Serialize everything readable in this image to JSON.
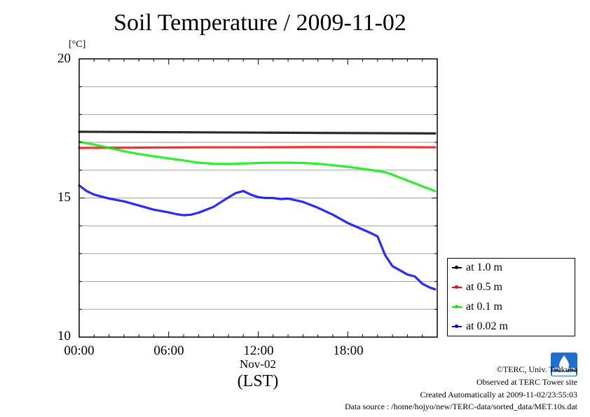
{
  "colors": {
    "at_1m": "#000000",
    "at_05m": "#ff0000",
    "at_01m": "#00ee00",
    "at_002m": "#0000ff",
    "grid": "#a0a0a0",
    "logo": "#1e6fd0"
  },
  "icons": {
    "logo": "terc-logo-icon"
  },
  "chart_data": {
    "type": "line",
    "title": "Soil Temperature / 2009-11-02",
    "ylabel": "[°C]",
    "xlabel": "(LST)",
    "x_date_label": "Nov-02",
    "ylim": [
      10,
      20
    ],
    "xlim": [
      "00:00",
      "24:00"
    ],
    "y_tick_labels": [
      "10",
      "15",
      "20"
    ],
    "y_ticks": [
      10,
      15,
      20
    ],
    "y_grid": [
      11,
      12,
      13,
      14,
      15,
      16,
      17,
      18,
      19
    ],
    "x_tick_labels": [
      "00:00",
      "06:00",
      "12:00",
      "18:00"
    ],
    "x_ticks_hours": [
      0,
      6,
      12,
      18
    ],
    "grid": true,
    "legend_position": "right",
    "series": [
      {
        "name": "at 1.0 m",
        "color_key": "at_1m",
        "x": [
          0,
          4,
          8,
          12,
          16,
          20,
          23.85
        ],
        "y": [
          17.38,
          17.37,
          17.36,
          17.35,
          17.34,
          17.33,
          17.32
        ]
      },
      {
        "name": "at 0.5 m",
        "color_key": "at_05m",
        "x": [
          0,
          4,
          8,
          12,
          16,
          20,
          23.85
        ],
        "y": [
          16.8,
          16.81,
          16.82,
          16.82,
          16.83,
          16.83,
          16.82
        ]
      },
      {
        "name": "at 0.1 m",
        "color_key": "at_01m",
        "x": [
          0,
          1,
          2,
          3,
          4,
          5,
          6,
          7,
          8,
          9,
          10,
          11,
          12,
          13,
          14,
          15,
          16,
          17,
          18,
          19,
          20,
          20.5,
          21,
          22,
          23,
          23.85
        ],
        "y": [
          17.02,
          16.92,
          16.8,
          16.68,
          16.58,
          16.5,
          16.42,
          16.35,
          16.27,
          16.23,
          16.22,
          16.24,
          16.26,
          16.27,
          16.27,
          16.26,
          16.23,
          16.18,
          16.12,
          16.05,
          15.97,
          15.93,
          15.84,
          15.63,
          15.42,
          15.25
        ]
      },
      {
        "name": "at 0.02 m",
        "color_key": "at_002m",
        "x": [
          0,
          0.5,
          1,
          2,
          3,
          4,
          5,
          6,
          6.5,
          7,
          7.5,
          8,
          9,
          10,
          10.5,
          11,
          11.5,
          12,
          12.5,
          13,
          13.5,
          14,
          15,
          16,
          17,
          18,
          19,
          19.5,
          20,
          20.2,
          20.5,
          21,
          21.5,
          22,
          22.5,
          23,
          23.5,
          23.85
        ],
        "y": [
          15.45,
          15.25,
          15.12,
          14.98,
          14.88,
          14.73,
          14.58,
          14.48,
          14.42,
          14.38,
          14.4,
          14.47,
          14.68,
          15.02,
          15.18,
          15.25,
          15.12,
          15.03,
          15.0,
          15.0,
          14.96,
          14.98,
          14.86,
          14.65,
          14.4,
          14.1,
          13.87,
          13.75,
          13.62,
          13.35,
          12.95,
          12.55,
          12.4,
          12.25,
          12.18,
          11.92,
          11.78,
          11.72
        ]
      }
    ]
  },
  "credits": {
    "copyright": "©TERC, Univ. Tsukuba",
    "observed": "Observed at TERC Tower site",
    "created": "Created Automatically at 2009-11-02/23:55:03",
    "source": "Data source : /home/hojyo/new/TERC-data/sorted_data/MET.10s.dat"
  }
}
